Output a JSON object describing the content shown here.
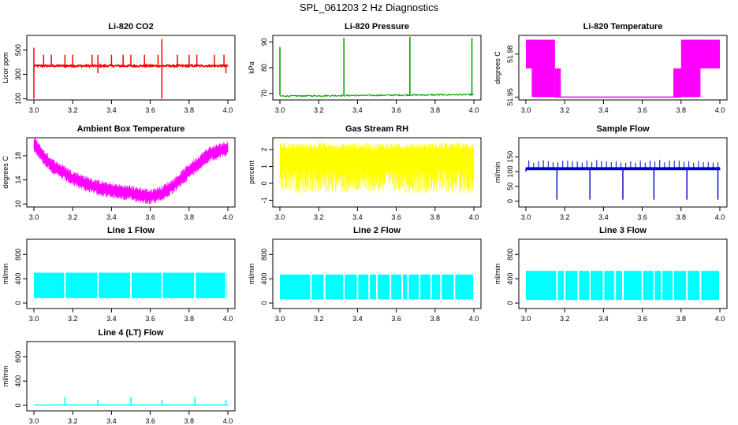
{
  "page": {
    "title": "SPL_061203  2 Hz Diagnostics"
  },
  "chart_data": [
    {
      "id": "co2",
      "type": "line",
      "title": "Li-820 CO2",
      "ylabel": "Licor ppm",
      "xlabel": "",
      "color": "#ff0000",
      "xlim": [
        3.0,
        4.0
      ],
      "ylim": [
        90,
        620
      ],
      "xticks": [
        "3.0",
        "3.2",
        "3.4",
        "3.6",
        "3.8",
        "4.0"
      ],
      "yticks": [
        100,
        300,
        500
      ],
      "grid": false,
      "baseline": 370,
      "band": 15,
      "spikes": [
        {
          "x": 3.0,
          "y": 520
        },
        {
          "x": 3.05,
          "y": 460
        },
        {
          "x": 3.09,
          "y": 460
        },
        {
          "x": 3.16,
          "y": 460
        },
        {
          "x": 3.2,
          "y": 460
        },
        {
          "x": 3.3,
          "y": 460
        },
        {
          "x": 3.33,
          "y": 460
        },
        {
          "x": 3.4,
          "y": 460
        },
        {
          "x": 3.46,
          "y": 460
        },
        {
          "x": 3.5,
          "y": 460
        },
        {
          "x": 3.57,
          "y": 460
        },
        {
          "x": 3.64,
          "y": 460
        },
        {
          "x": 3.66,
          "y": 590
        },
        {
          "x": 3.74,
          "y": 460
        },
        {
          "x": 3.8,
          "y": 460
        },
        {
          "x": 3.84,
          "y": 460
        },
        {
          "x": 3.93,
          "y": 460
        },
        {
          "x": 3.98,
          "y": 460
        }
      ],
      "dips": [
        {
          "x": 3.0,
          "y": 100
        },
        {
          "x": 3.33,
          "y": 310
        },
        {
          "x": 3.66,
          "y": 100
        },
        {
          "x": 3.99,
          "y": 310
        }
      ]
    },
    {
      "id": "pressure",
      "type": "line",
      "title": "Li-820 Pressure",
      "ylabel": "kPa",
      "xlabel": "",
      "color": "#00aa00",
      "xlim": [
        3.0,
        4.0
      ],
      "ylim": [
        67.5,
        92.5
      ],
      "xticks": [
        "3.0",
        "3.2",
        "3.4",
        "3.6",
        "3.8",
        "4.0"
      ],
      "yticks": [
        70,
        80,
        90
      ],
      "grid": false,
      "start": 69.0,
      "end": 69.6,
      "spikes": [
        {
          "x": 3.0,
          "y": 88
        },
        {
          "x": 3.33,
          "y": 91.5
        },
        {
          "x": 3.67,
          "y": 92
        },
        {
          "x": 3.99,
          "y": 91.5
        }
      ]
    },
    {
      "id": "temp",
      "type": "line",
      "title": "Li-820 Temperature",
      "ylabel": "degrees C",
      "xlabel": "",
      "color": "#ff00ff",
      "xlim": [
        3.0,
        4.0
      ],
      "ylim": [
        51.948,
        51.993
      ],
      "xticks": [
        "3.0",
        "3.2",
        "3.4",
        "3.6",
        "3.8",
        "4.0"
      ],
      "yticks": [
        51.95,
        51.98
      ],
      "ytick_labels": [
        "51.95",
        "51.98"
      ],
      "grid": false,
      "levels": {
        "low": 51.95,
        "high": 51.99,
        "mid": 51.97
      }
    },
    {
      "id": "ambient",
      "type": "line",
      "title": "Ambient Box Temperature",
      "ylabel": "degrees C",
      "xlabel": "",
      "color": "#ff00ff",
      "xlim": [
        3.0,
        4.0
      ],
      "ylim": [
        9.5,
        21
      ],
      "xticks": [
        "3.0",
        "3.2",
        "3.4",
        "3.6",
        "3.8",
        "4.0"
      ],
      "yticks": [
        10,
        14,
        18
      ],
      "grid": false,
      "curve": [
        {
          "x": 3.0,
          "y": 20.0
        },
        {
          "x": 3.05,
          "y": 17.8
        },
        {
          "x": 3.1,
          "y": 16.2
        },
        {
          "x": 3.2,
          "y": 14.3
        },
        {
          "x": 3.3,
          "y": 13.0
        },
        {
          "x": 3.4,
          "y": 12.2
        },
        {
          "x": 3.5,
          "y": 11.8
        },
        {
          "x": 3.6,
          "y": 11.2
        },
        {
          "x": 3.66,
          "y": 11.8
        },
        {
          "x": 3.72,
          "y": 13.0
        },
        {
          "x": 3.8,
          "y": 15.5
        },
        {
          "x": 3.9,
          "y": 18.2
        },
        {
          "x": 4.0,
          "y": 19.3
        }
      ],
      "noise": 1.3
    },
    {
      "id": "rh",
      "type": "line",
      "title": "Gas Stream RH",
      "ylabel": "percent",
      "xlabel": "",
      "color": "#ffff00",
      "xlim": [
        3.0,
        4.0
      ],
      "ylim": [
        -1.4,
        2.7
      ],
      "xticks": [
        "3.0",
        "3.2",
        "3.4",
        "3.6",
        "3.8",
        "4.0"
      ],
      "yticks": [
        -1,
        0,
        1,
        2
      ],
      "grid": false,
      "upper": 2.2,
      "lower": 0.8,
      "minimum": -1.2
    },
    {
      "id": "sample",
      "type": "line",
      "title": "Sample Flow",
      "ylabel": "ml/min",
      "xlabel": "",
      "color": "#0000cc",
      "xlim": [
        3.0,
        4.0
      ],
      "ylim": [
        -20,
        215
      ],
      "xticks": [
        "3.0",
        "3.2",
        "3.4",
        "3.6",
        "3.8",
        "4.0"
      ],
      "yticks": [
        0,
        50,
        100,
        150
      ],
      "grid": false,
      "baseline": 110,
      "band": 10,
      "spikes_up": 140,
      "dips": [
        {
          "x": 3.0,
          "y": 100
        },
        {
          "x": 3.16,
          "y": 5
        },
        {
          "x": 3.33,
          "y": 5
        },
        {
          "x": 3.5,
          "y": 5
        },
        {
          "x": 3.66,
          "y": 5
        },
        {
          "x": 3.83,
          "y": 5
        },
        {
          "x": 3.99,
          "y": 5
        }
      ]
    },
    {
      "id": "line1",
      "type": "area",
      "title": "Line 1 Flow",
      "ylabel": "ml/min",
      "xlabel": "",
      "color": "#00ffff",
      "xlim": [
        3.0,
        4.0
      ],
      "ylim": [
        -90,
        1050
      ],
      "xticks": [
        "3.0",
        "3.2",
        "3.4",
        "3.6",
        "3.8",
        "4.0"
      ],
      "yticks": [
        0,
        400,
        800
      ],
      "grid": false,
      "top": 500,
      "bottom": 80,
      "gaps": [
        3.16,
        3.33,
        3.5,
        3.66,
        3.83,
        3.99
      ]
    },
    {
      "id": "line2",
      "type": "area",
      "title": "Line 2 Flow",
      "ylabel": "ml/min",
      "xlabel": "",
      "color": "#00ffff",
      "xlim": [
        3.0,
        4.0
      ],
      "ylim": [
        -90,
        1050
      ],
      "xticks": [
        "3.0",
        "3.2",
        "3.4",
        "3.6",
        "3.8",
        "4.0"
      ],
      "yticks": [
        0,
        400,
        800
      ],
      "grid": false,
      "top": 470,
      "bottom": 60,
      "gaps": [
        3.16,
        3.23,
        3.33,
        3.4,
        3.46,
        3.5,
        3.57,
        3.63,
        3.66,
        3.72,
        3.78,
        3.83,
        3.9
      ]
    },
    {
      "id": "line3",
      "type": "area",
      "title": "Line 3 Flow",
      "ylabel": "ml/min",
      "xlabel": "",
      "color": "#00ffff",
      "xlim": [
        3.0,
        4.0
      ],
      "ylim": [
        -90,
        1050
      ],
      "xticks": [
        "3.0",
        "3.2",
        "3.4",
        "3.6",
        "3.8",
        "4.0"
      ],
      "yticks": [
        0,
        400,
        800
      ],
      "grid": false,
      "top": 530,
      "bottom": 50,
      "gaps": [
        3.16,
        3.2,
        3.27,
        3.33,
        3.4,
        3.46,
        3.5,
        3.6,
        3.66,
        3.7,
        3.76,
        3.83,
        3.9
      ]
    },
    {
      "id": "line4",
      "type": "line",
      "title": "Line 4 (LT) Flow",
      "ylabel": "ml/min",
      "xlabel": "",
      "color": "#00ffff",
      "xlim": [
        3.0,
        4.0
      ],
      "ylim": [
        -90,
        1050
      ],
      "xticks": [
        "3.0",
        "3.2",
        "3.4",
        "3.6",
        "3.8",
        "4.0"
      ],
      "yticks": [
        0,
        400,
        800
      ],
      "grid": false,
      "baseline": 5,
      "spikes": [
        {
          "x": 3.16,
          "y": 140
        },
        {
          "x": 3.33,
          "y": 90
        },
        {
          "x": 3.5,
          "y": 140
        },
        {
          "x": 3.66,
          "y": 90
        },
        {
          "x": 3.83,
          "y": 140
        },
        {
          "x": 3.99,
          "y": 90
        }
      ]
    }
  ]
}
